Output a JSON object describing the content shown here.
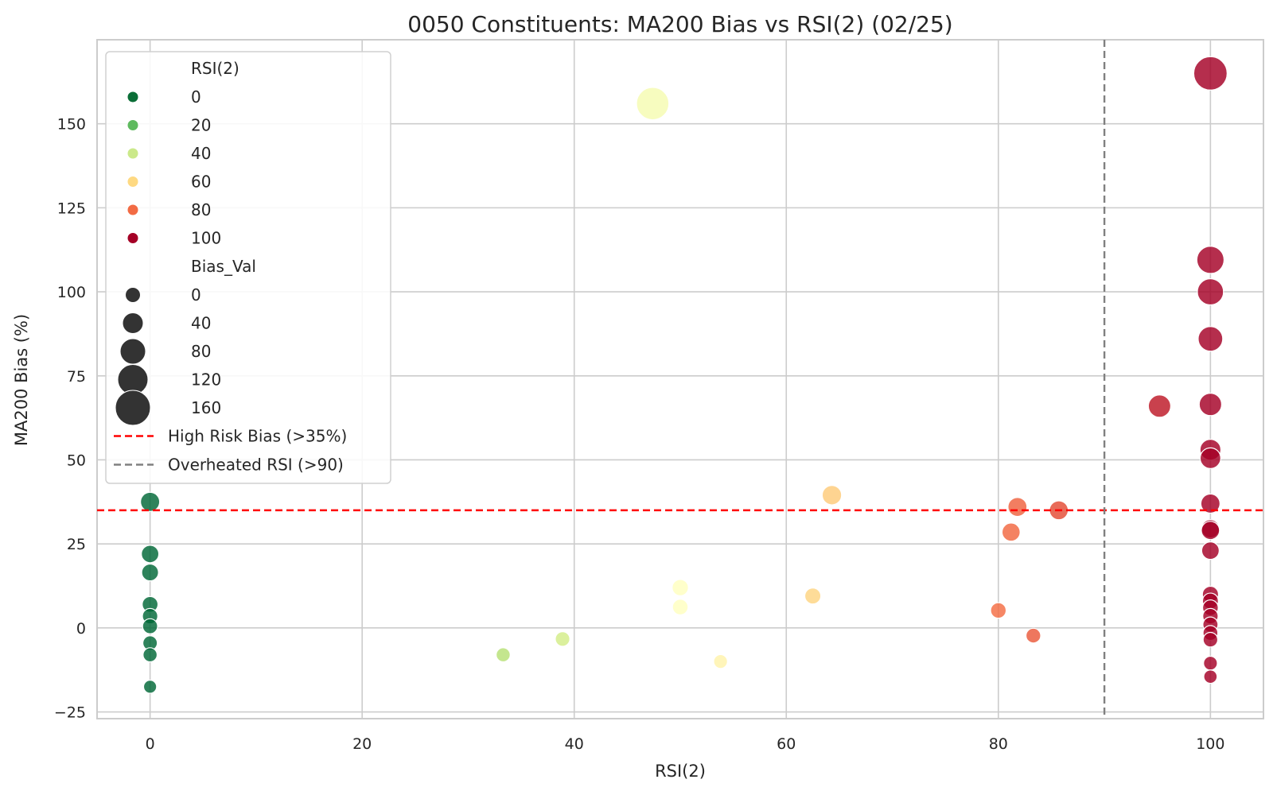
{
  "chart_data": {
    "type": "scatter",
    "title": "0050 Constituents: MA200 Bias vs RSI(2) (02/25)",
    "xlabel": "RSI(2)",
    "ylabel": "MA200 Bias (%)",
    "xlim": [
      -5,
      105
    ],
    "ylim": [
      -27,
      175
    ],
    "xticks": [
      0,
      20,
      40,
      60,
      80,
      100
    ],
    "yticks": [
      -25,
      0,
      25,
      50,
      75,
      100,
      125,
      150
    ],
    "ytick_labels": [
      "−25",
      "0",
      "25",
      "50",
      "75",
      "100",
      "125",
      "150"
    ],
    "grid": true,
    "colormap": "RdYlGn_r",
    "hue_variable": "RSI(2)",
    "size_variable": "Bias_Val",
    "reference_lines": [
      {
        "orientation": "horizontal",
        "value": 35,
        "label": "High Risk Bias (>35%)",
        "color": "#ff0000",
        "style": "dashed"
      },
      {
        "orientation": "vertical",
        "value": 90,
        "label": "Overheated RSI (>90)",
        "color": "#808080",
        "style": "dashed"
      }
    ],
    "legend": {
      "placement": "top-left",
      "hue_title": "RSI(2)",
      "hue_entries": [
        {
          "label": "0",
          "color": "#0b6e37"
        },
        {
          "label": "20",
          "color": "#5fba5f"
        },
        {
          "label": "40",
          "color": "#cbe98a"
        },
        {
          "label": "60",
          "color": "#fed982"
        },
        {
          "label": "80",
          "color": "#f26b44"
        },
        {
          "label": "100",
          "color": "#a50026"
        }
      ],
      "size_title": "Bias_Val",
      "size_entries": [
        {
          "label": "0",
          "value": 0
        },
        {
          "label": "40",
          "value": 40
        },
        {
          "label": "80",
          "value": 80
        },
        {
          "label": "120",
          "value": 120
        },
        {
          "label": "160",
          "value": 160
        }
      ]
    },
    "points": [
      {
        "x": 0,
        "y": 37.5
      },
      {
        "x": 0,
        "y": 22
      },
      {
        "x": 0,
        "y": 16.5
      },
      {
        "x": 0,
        "y": 7
      },
      {
        "x": 0,
        "y": 3.5
      },
      {
        "x": 0,
        "y": 0.5
      },
      {
        "x": 0,
        "y": -4.5
      },
      {
        "x": 0,
        "y": -8
      },
      {
        "x": 0,
        "y": -17.5
      },
      {
        "x": 33.3,
        "y": -8
      },
      {
        "x": 38.9,
        "y": -3.3
      },
      {
        "x": 47.4,
        "y": 156
      },
      {
        "x": 50,
        "y": 12
      },
      {
        "x": 50,
        "y": 6.2
      },
      {
        "x": 53.8,
        "y": -10
      },
      {
        "x": 62.5,
        "y": 9.5
      },
      {
        "x": 64.3,
        "y": 39.5
      },
      {
        "x": 80,
        "y": 5.2
      },
      {
        "x": 81.2,
        "y": 28.5
      },
      {
        "x": 81.8,
        "y": 36
      },
      {
        "x": 83.3,
        "y": -2.3
      },
      {
        "x": 85.7,
        "y": 35
      },
      {
        "x": 95.2,
        "y": 66
      },
      {
        "x": 100,
        "y": 165
      },
      {
        "x": 100,
        "y": 109.5
      },
      {
        "x": 100,
        "y": 100
      },
      {
        "x": 100,
        "y": 86
      },
      {
        "x": 100,
        "y": 66.5
      },
      {
        "x": 100,
        "y": 53
      },
      {
        "x": 100,
        "y": 50.5
      },
      {
        "x": 100,
        "y": 37
      },
      {
        "x": 100,
        "y": 29.5
      },
      {
        "x": 100,
        "y": 29
      },
      {
        "x": 100,
        "y": 23
      },
      {
        "x": 100,
        "y": 10
      },
      {
        "x": 100,
        "y": 8
      },
      {
        "x": 100,
        "y": 6
      },
      {
        "x": 100,
        "y": 3.5
      },
      {
        "x": 100,
        "y": 1
      },
      {
        "x": 100,
        "y": -1.5
      },
      {
        "x": 100,
        "y": -3.5
      },
      {
        "x": 100,
        "y": -10.5
      },
      {
        "x": 100,
        "y": -14.5
      }
    ]
  }
}
